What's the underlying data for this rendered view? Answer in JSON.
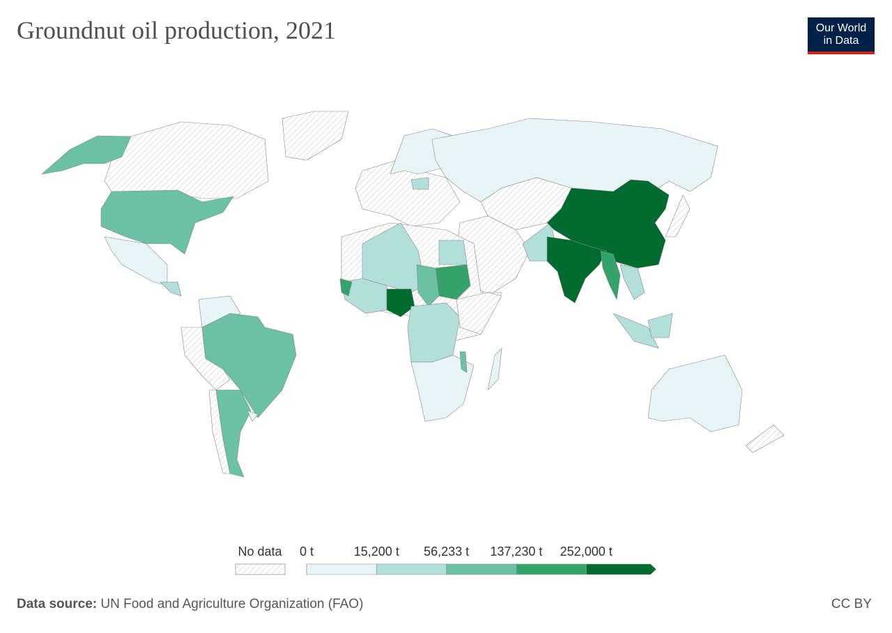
{
  "header": {
    "title": "Groundnut oil production, 2021",
    "logo": [
      "Our World",
      "in Data"
    ]
  },
  "legend": {
    "no_data_label": "No data",
    "ticks": [
      {
        "value": 0,
        "label": "0 t"
      },
      {
        "value": 15200,
        "label": "15,200 t"
      },
      {
        "value": 56233,
        "label": "56,233 t"
      },
      {
        "value": 137230,
        "label": "137,230 t"
      },
      {
        "value": 252000,
        "label": "252,000 t"
      }
    ],
    "colors": [
      "#e8f5f7",
      "#b2dedc",
      "#6ac1a3",
      "#35a269",
      "#006b2e"
    ]
  },
  "footer": {
    "source_label": "Data source:",
    "source": "UN Food and Agriculture Organization (FAO)",
    "license": "CC BY"
  }
}
